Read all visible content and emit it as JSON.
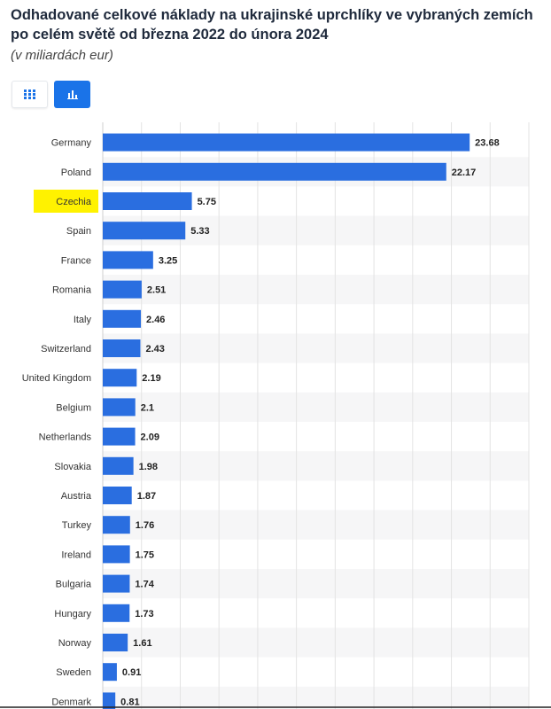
{
  "header": {
    "title": "Odhadované celkové náklady na ukrajinské uprchlíky ve vybraných zemích po celém světě od března 2022 do února 2024",
    "subtitle": "(v miliardách eur)"
  },
  "toolbar": {
    "table_view_icon": "grid-table-icon",
    "chart_view_icon": "bar-chart-icon"
  },
  "colors": {
    "bar": "#2a6ee0",
    "highlight": "#fff200",
    "accent_button": "#1a73e8"
  },
  "chart_data": {
    "type": "bar",
    "orientation": "horizontal",
    "title": "Odhadované celkové náklady na ukrajinské uprchlíky ve vybraných zemích po celém světě od března 2022 do února 2024",
    "subtitle": "(v miliardách eur)",
    "categories": [
      "Germany",
      "Poland",
      "Czechia",
      "Spain",
      "France",
      "Romania",
      "Italy",
      "Switzerland",
      "United Kingdom",
      "Belgium",
      "Netherlands",
      "Slovakia",
      "Austria",
      "Turkey",
      "Ireland",
      "Bulgaria",
      "Hungary",
      "Norway",
      "Sweden",
      "Denmark"
    ],
    "values": [
      23.68,
      22.17,
      5.75,
      5.33,
      3.25,
      2.51,
      2.46,
      2.43,
      2.19,
      2.1,
      2.09,
      1.98,
      1.87,
      1.76,
      1.75,
      1.74,
      1.73,
      1.61,
      0.91,
      0.81
    ],
    "value_labels": [
      "23.68",
      "22.17",
      "5.75",
      "5.33",
      "3.25",
      "2.51",
      "2.46",
      "2.43",
      "2.19",
      "2.1",
      "2.09",
      "1.98",
      "1.87",
      "1.76",
      "1.75",
      "1.74",
      "1.73",
      "1.61",
      "0.91",
      "0.81"
    ],
    "highlighted_category": "Czechia",
    "xlim": [
      0,
      27.5
    ],
    "grid": true
  }
}
